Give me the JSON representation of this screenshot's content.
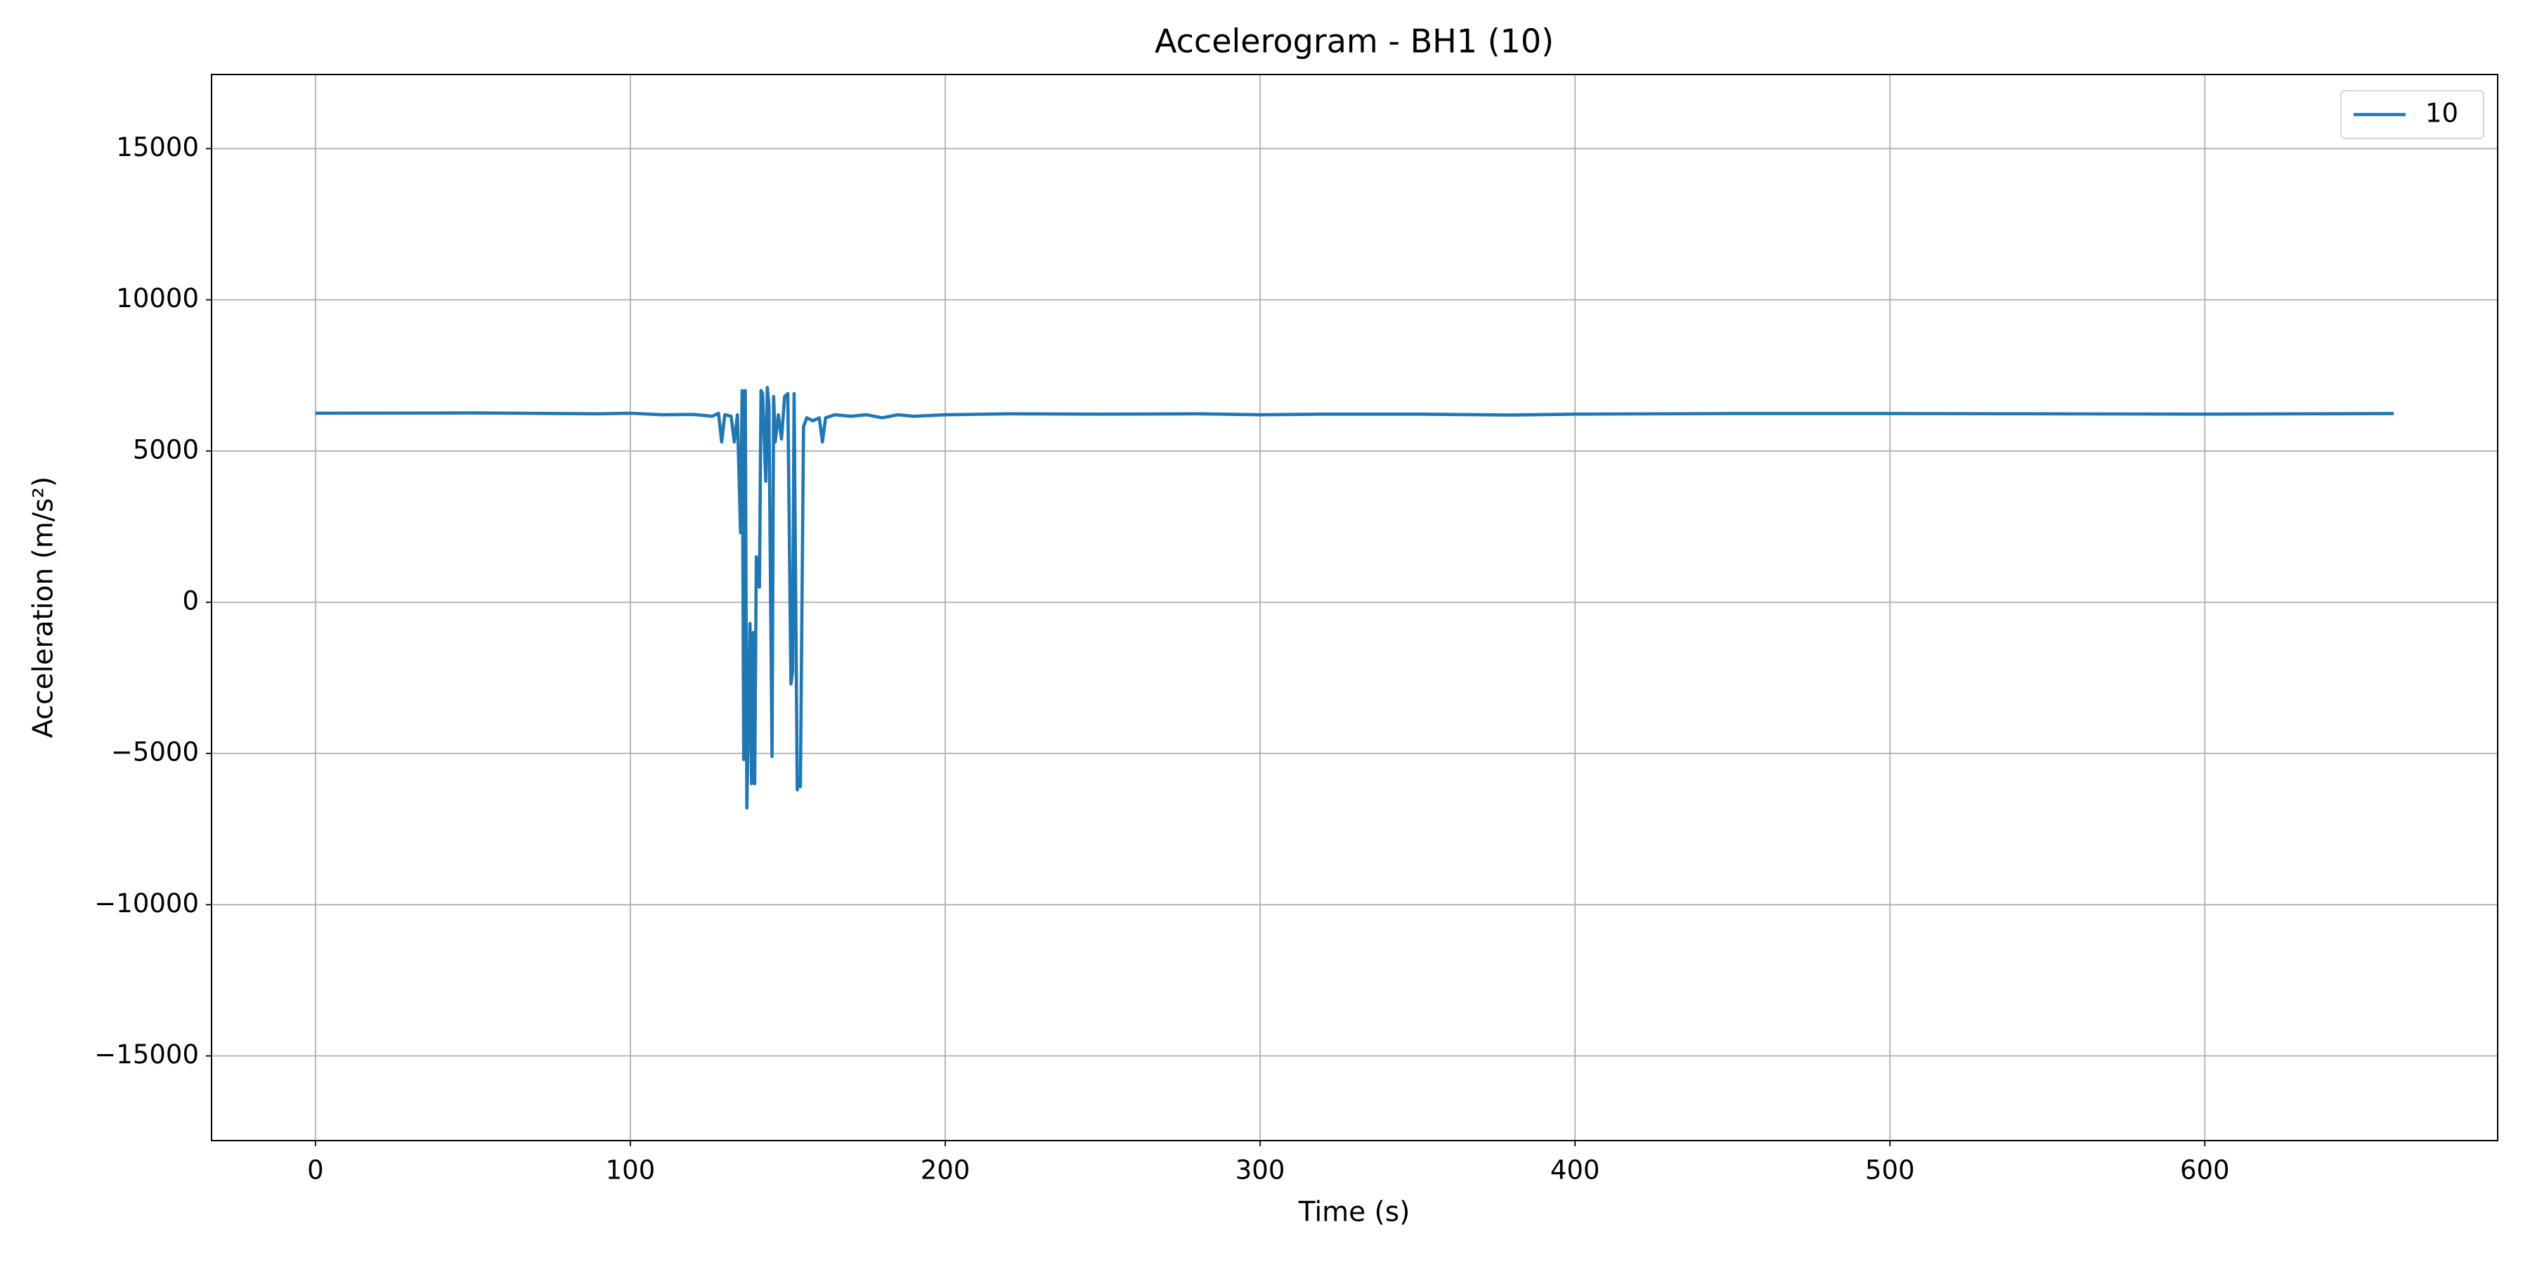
{
  "chart_data": {
    "type": "line",
    "title": "Accelerogram - BH1 (10)",
    "x_label": "Time (s)",
    "y_label": "Acceleration (m/s²)",
    "x": [
      0,
      50,
      90,
      100,
      110,
      120,
      126,
      128,
      129,
      130,
      132,
      133,
      134,
      135,
      135.5,
      136,
      136.5,
      137,
      138,
      138.5,
      139,
      139.5,
      140,
      141,
      141.5,
      142,
      143,
      143.5,
      144,
      145,
      145.5,
      146,
      147,
      148,
      149,
      150,
      151,
      151.5,
      152,
      153,
      153.5,
      154,
      155,
      156,
      158,
      160,
      161,
      162,
      165,
      170,
      175,
      180,
      185,
      190,
      200,
      220,
      250,
      280,
      300,
      320,
      350,
      380,
      400,
      450,
      500,
      550,
      600,
      660
    ],
    "series": [
      {
        "name": "10",
        "color": "#1f77b4",
        "values": [
          6250,
          6260,
          6230,
          6250,
          6200,
          6210,
          6150,
          6250,
          5300,
          6200,
          6150,
          5300,
          6200,
          2300,
          7000,
          -5200,
          7000,
          -6800,
          -700,
          -6000,
          -1000,
          -6000,
          1500,
          500,
          7000,
          6900,
          4000,
          7100,
          6500,
          -5100,
          6800,
          5300,
          6200,
          5400,
          6800,
          6900,
          -2700,
          -2300,
          6900,
          -6200,
          -5800,
          -6100,
          5800,
          6100,
          6000,
          6100,
          5300,
          6100,
          6200,
          6150,
          6200,
          6100,
          6200,
          6150,
          6200,
          6230,
          6220,
          6230,
          6200,
          6220,
          6220,
          6190,
          6220,
          6240,
          6240,
          6230,
          6220,
          6240
        ]
      }
    ],
    "xlim": [
      -33,
      693
    ],
    "ylim": [
      -17800,
      17450
    ],
    "xticks": [
      0,
      100,
      200,
      300,
      400,
      500,
      600
    ],
    "yticks": [
      {
        "value": -15000,
        "label": "−15000"
      },
      {
        "value": -10000,
        "label": "−10000"
      },
      {
        "value": -5000,
        "label": "−5000"
      },
      0,
      5000,
      10000,
      15000
    ],
    "grid": true,
    "legend": "upper right"
  }
}
